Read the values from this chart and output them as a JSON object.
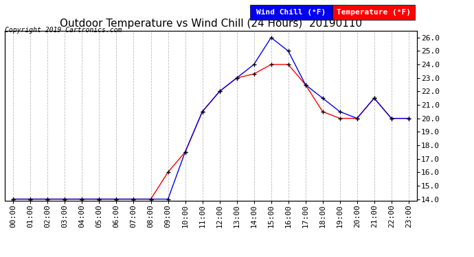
{
  "title": "Outdoor Temperature vs Wind Chill (24 Hours)  20190110",
  "copyright": "Copyright 2019 Cartronics.com",
  "legend_wind_chill": "Wind Chill (°F)",
  "legend_temperature": "Temperature (°F)",
  "hours": [
    0,
    1,
    2,
    3,
    4,
    5,
    6,
    7,
    8,
    9,
    10,
    11,
    12,
    13,
    14,
    15,
    16,
    17,
    18,
    19,
    20,
    21,
    22,
    23
  ],
  "temperature": [
    14.0,
    14.0,
    14.0,
    14.0,
    14.0,
    14.0,
    14.0,
    14.0,
    14.0,
    16.0,
    17.5,
    20.5,
    22.0,
    23.0,
    23.3,
    24.0,
    24.0,
    22.5,
    20.5,
    20.0,
    20.0,
    21.5,
    20.0,
    20.0
  ],
  "wind_chill": [
    14.0,
    14.0,
    14.0,
    14.0,
    14.0,
    14.0,
    14.0,
    14.0,
    14.0,
    14.0,
    17.5,
    20.5,
    22.0,
    23.0,
    24.0,
    26.0,
    25.0,
    22.5,
    21.5,
    20.5,
    20.0,
    21.5,
    20.0,
    20.0
  ],
  "ylim_min": 14.0,
  "ylim_max": 26.5,
  "yticks": [
    14.0,
    15.0,
    16.0,
    17.0,
    18.0,
    19.0,
    20.0,
    21.0,
    22.0,
    23.0,
    24.0,
    25.0,
    26.0
  ],
  "bg_color": "#ffffff",
  "grid_color": "#bbbbbb",
  "temp_color": "#ff0000",
  "wind_chill_color": "#0000ee",
  "marker_color": "#000000",
  "title_fontsize": 11,
  "copyright_fontsize": 7,
  "tick_fontsize": 8,
  "legend_fontsize": 8
}
